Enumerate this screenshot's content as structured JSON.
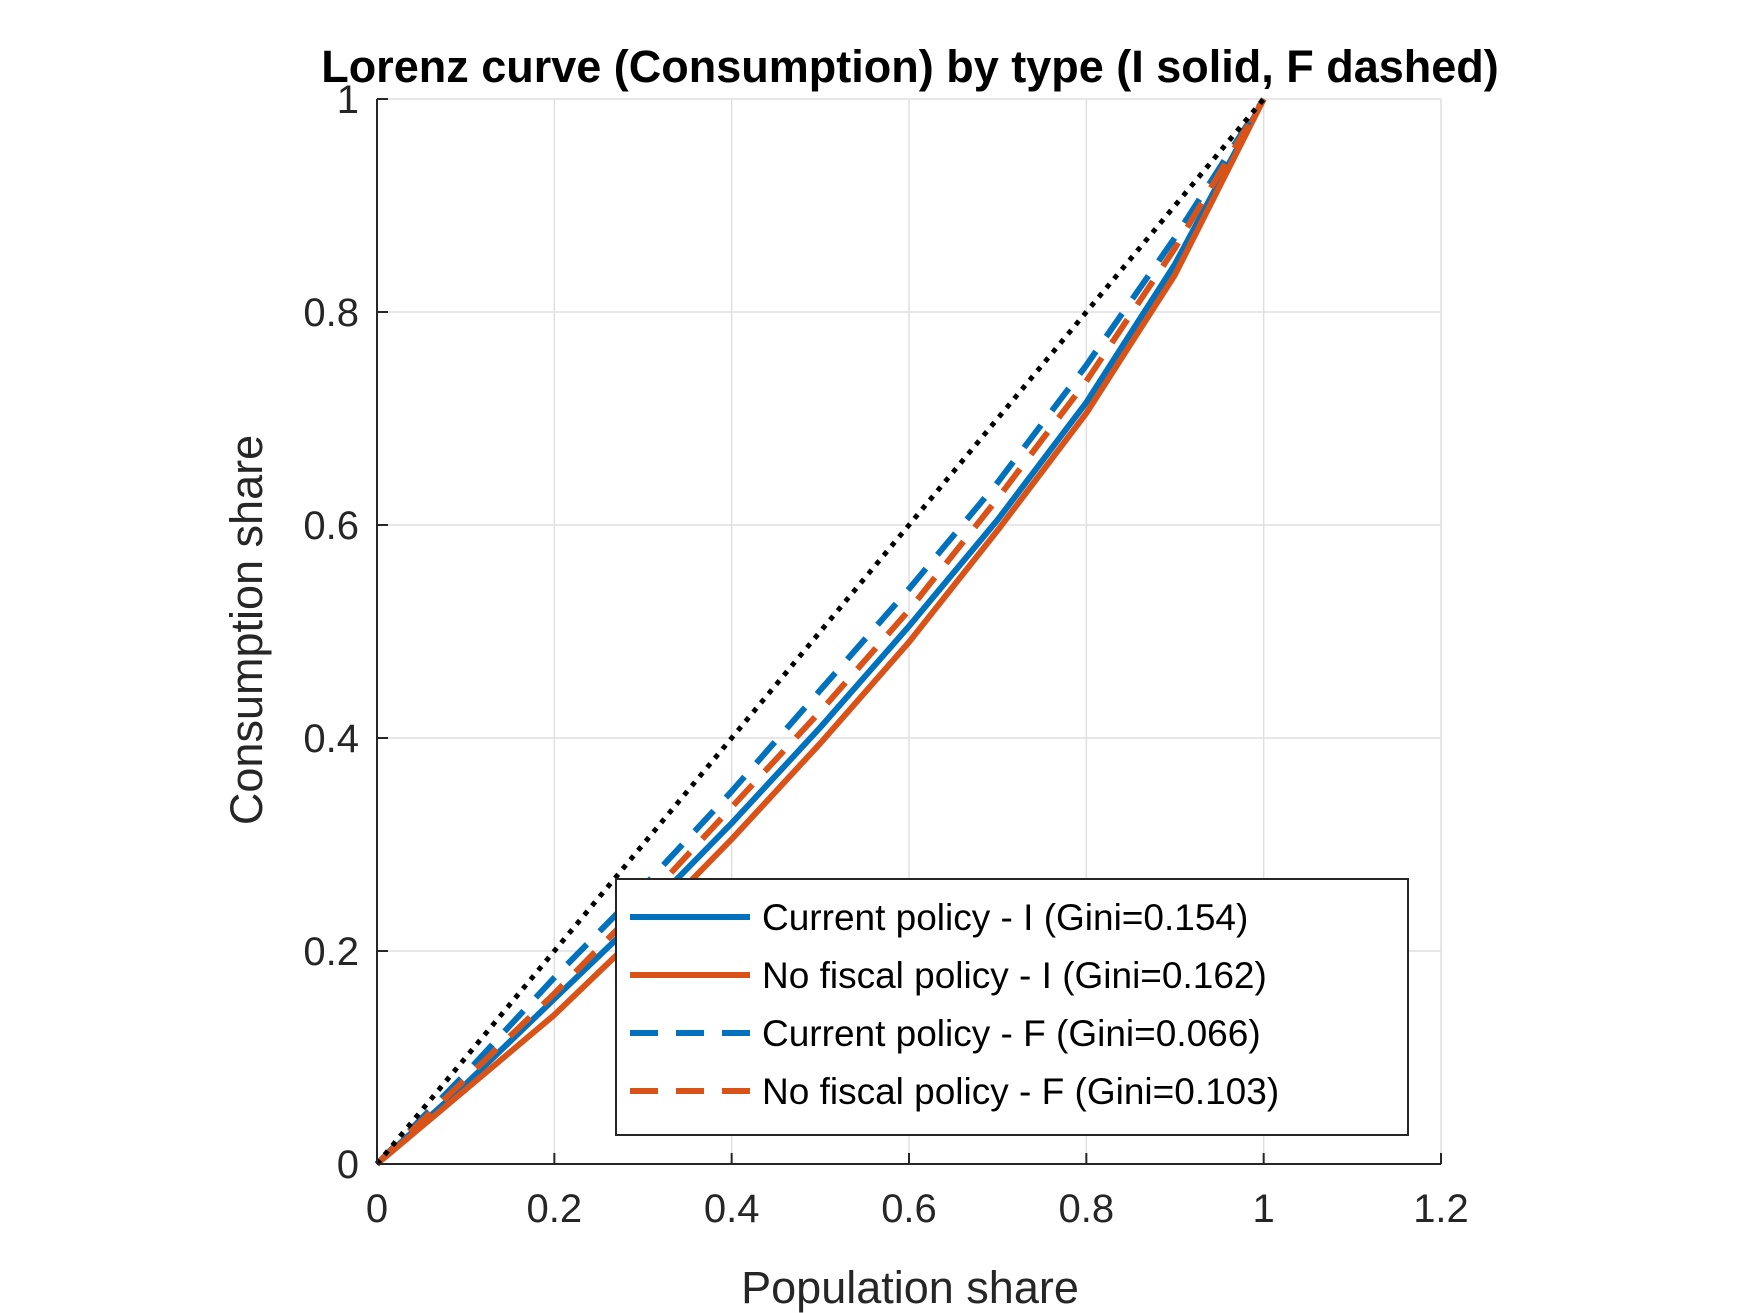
{
  "chart_data": {
    "type": "line",
    "title": "Lorenz curve (Consumption) by type (I solid, F dashed)",
    "xlabel": "Population share",
    "ylabel": "Consumption share",
    "xlim": [
      0,
      1.2
    ],
    "ylim": [
      0,
      1
    ],
    "xticks": [
      0,
      0.2,
      0.4,
      0.6,
      0.8,
      1,
      1.2
    ],
    "yticks": [
      0,
      0.2,
      0.4,
      0.6,
      0.8,
      1
    ],
    "xtick_labels": [
      "0",
      "0.2",
      "0.4",
      "0.6",
      "0.8",
      "1",
      "1.2"
    ],
    "ytick_labels": [
      "0",
      "0.2",
      "0.4",
      "0.6",
      "0.8",
      "1"
    ],
    "grid": true,
    "legend_position": "bottom-right",
    "series": [
      {
        "name": "Current policy - I (Gini=0.154)",
        "color": "#0072BD",
        "style": "solid",
        "x": [
          0,
          0.1,
          0.2,
          0.3,
          0.4,
          0.5,
          0.6,
          0.7,
          0.8,
          0.9,
          1
        ],
        "y": [
          0,
          0.075,
          0.155,
          0.235,
          0.32,
          0.41,
          0.505,
          0.605,
          0.715,
          0.845,
          1
        ]
      },
      {
        "name": "No fiscal policy - I (Gini=0.162)",
        "color": "#D95319",
        "style": "solid",
        "x": [
          0,
          0.1,
          0.2,
          0.3,
          0.4,
          0.5,
          0.6,
          0.7,
          0.8,
          0.9,
          1
        ],
        "y": [
          0,
          0.07,
          0.14,
          0.22,
          0.305,
          0.395,
          0.49,
          0.595,
          0.705,
          0.835,
          1
        ]
      },
      {
        "name": "Current policy - F (Gini=0.066)",
        "color": "#0072BD",
        "style": "dashed",
        "x": [
          0,
          0.1,
          0.2,
          0.3,
          0.4,
          0.5,
          0.6,
          0.7,
          0.8,
          0.9,
          1
        ],
        "y": [
          0,
          0.085,
          0.175,
          0.26,
          0.35,
          0.445,
          0.54,
          0.64,
          0.75,
          0.87,
          1
        ]
      },
      {
        "name": "No fiscal policy - F (Gini=0.103)",
        "color": "#D95319",
        "style": "dashed",
        "x": [
          0,
          0.1,
          0.2,
          0.3,
          0.4,
          0.5,
          0.6,
          0.7,
          0.8,
          0.9,
          1
        ],
        "y": [
          0,
          0.08,
          0.16,
          0.245,
          0.335,
          0.425,
          0.52,
          0.625,
          0.735,
          0.86,
          1
        ]
      },
      {
        "color": "#000000",
        "style": "dotted",
        "x": [
          0,
          1
        ],
        "y": [
          0,
          1
        ]
      }
    ]
  }
}
